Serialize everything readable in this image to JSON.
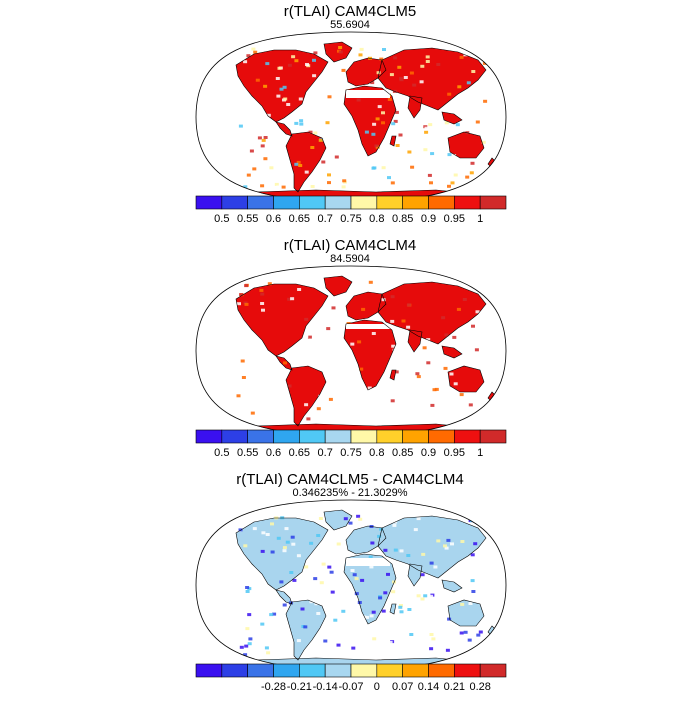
{
  "colors": {
    "land_a": "#e60b0b",
    "land_b": "#d91c1c",
    "accent_white": "#ffffff",
    "outline": "#000000",
    "ocean": "#ffffff",
    "diff_land": "#a9d5ee"
  },
  "panels": [
    {
      "title": "r(TLAI) CAM4CLM5",
      "subtitle": "55.6904",
      "colorbar": {
        "colors": [
          "#3a10f0",
          "#2d3fe6",
          "#3a73e8",
          "#2fa6f0",
          "#50c8f5",
          "#a8d7f0",
          "#fff8a8",
          "#ffd02a",
          "#ffa300",
          "#ff6a00",
          "#ee1010",
          "#d12a2a"
        ],
        "labels": [
          "0.5",
          "0.55",
          "0.6",
          "0.65",
          "0.7",
          "0.75",
          "0.8",
          "0.85",
          "0.9",
          "0.95",
          "1"
        ]
      }
    },
    {
      "title": "r(TLAI) CAM4CLM4",
      "subtitle": "84.5904",
      "colorbar": {
        "colors": [
          "#3a10f0",
          "#2d3fe6",
          "#3a73e8",
          "#2fa6f0",
          "#50c8f5",
          "#a8d7f0",
          "#fff8a8",
          "#ffd02a",
          "#ffa300",
          "#ff6a00",
          "#ee1010",
          "#d12a2a"
        ],
        "labels": [
          "0.5",
          "0.55",
          "0.6",
          "0.65",
          "0.7",
          "0.75",
          "0.8",
          "0.85",
          "0.9",
          "0.95",
          "1"
        ]
      }
    },
    {
      "title": "r(TLAI) CAM4CLM5 - CAM4CLM4",
      "subtitle": "0.346235% - 21.3029%",
      "colorbar": {
        "colors": [
          "#3a10f0",
          "#2d3fe6",
          "#3a73e8",
          "#2fa6f0",
          "#50c8f5",
          "#a8d7f0",
          "#fff8a8",
          "#ffd02a",
          "#ffa300",
          "#ff6a00",
          "#ee1010",
          "#d12a2a"
        ],
        "labels": [
          "-0.28",
          "-0.21",
          "-0.14",
          "-0.07",
          "0",
          "0.07",
          "0.14",
          "0.21",
          "0.28"
        ]
      }
    }
  ]
}
